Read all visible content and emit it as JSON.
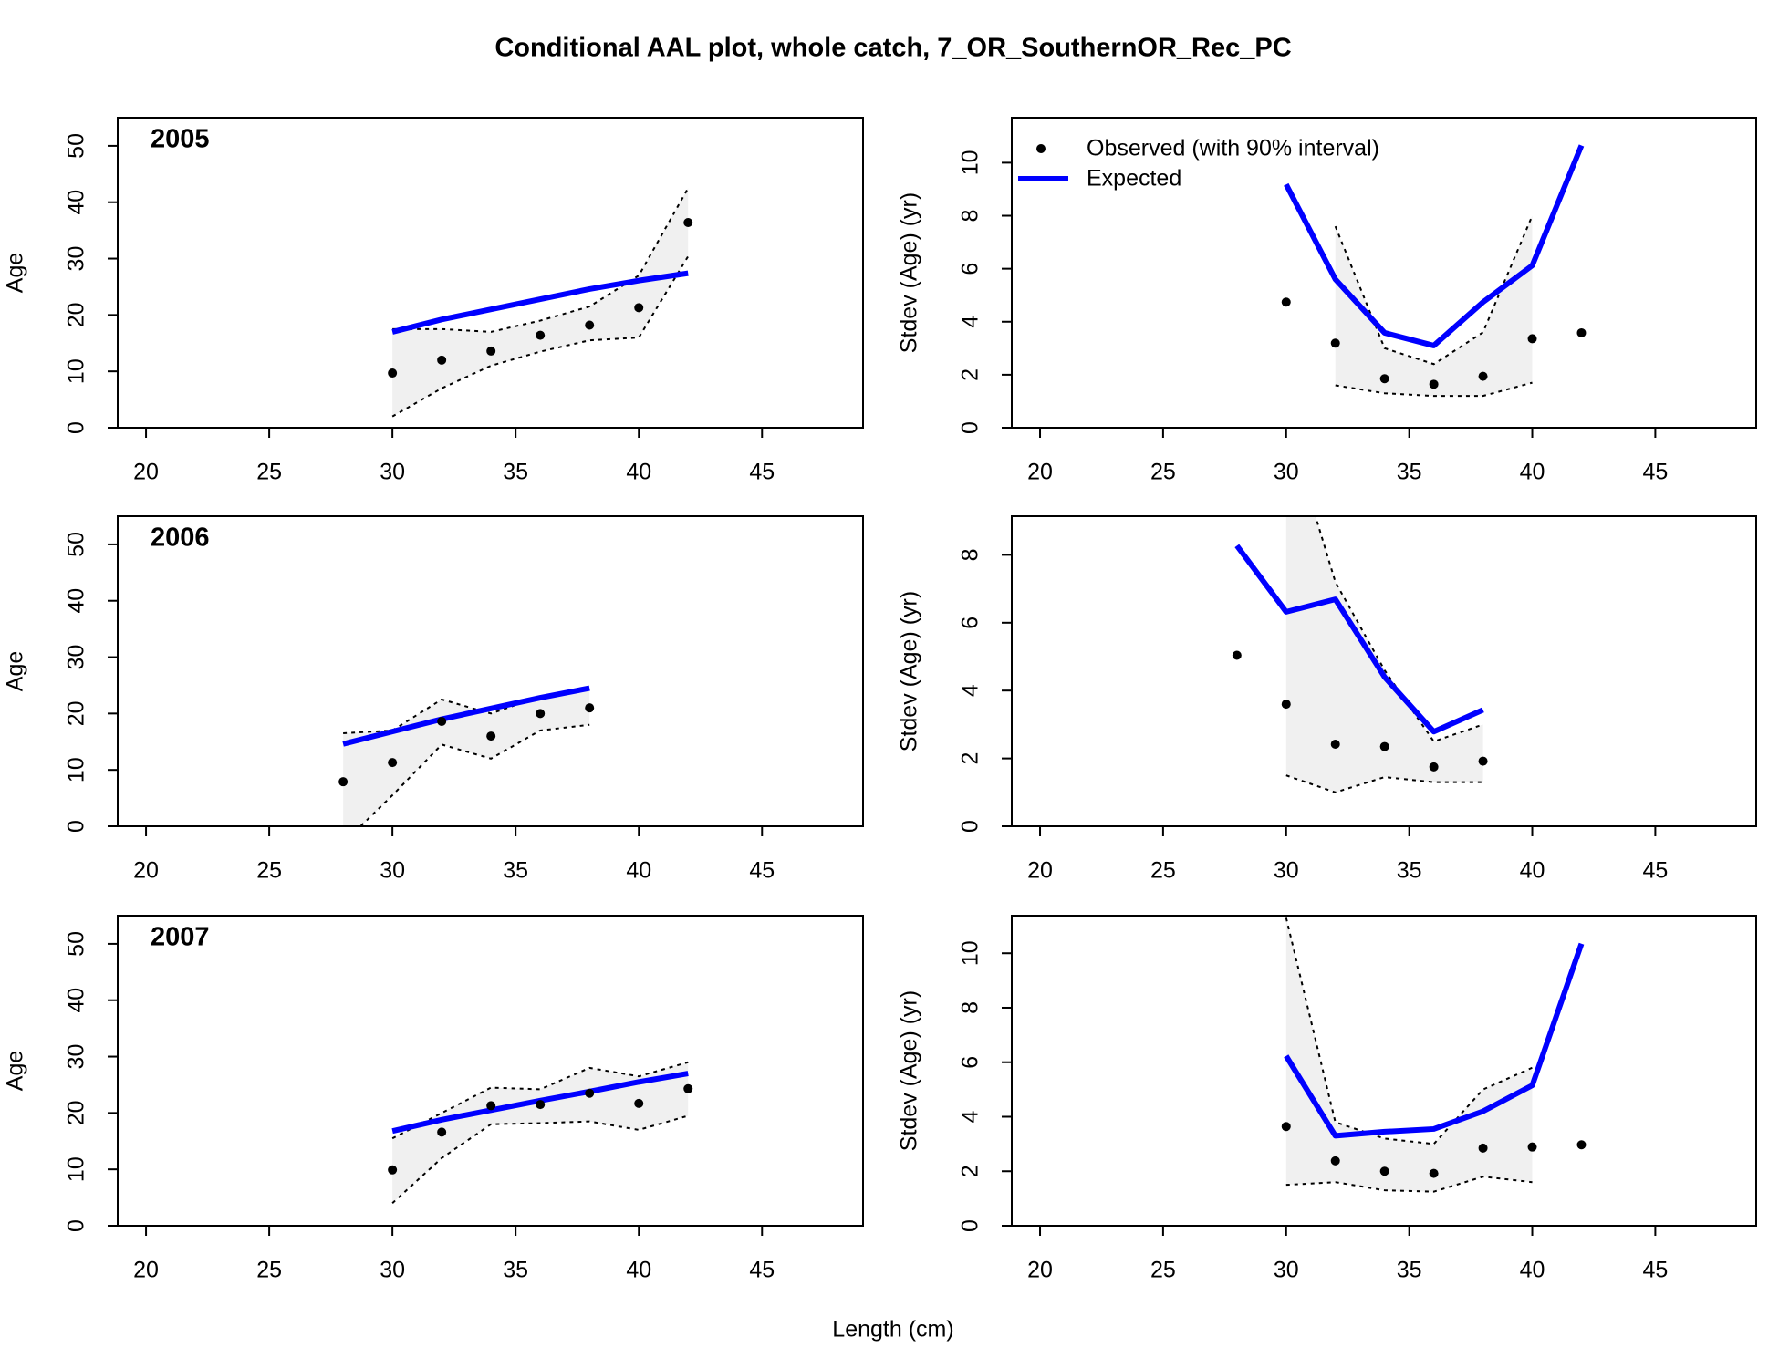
{
  "title": "Conditional AAL plot, whole catch, 7_OR_SouthernOR_Rec_PC",
  "xlabel": "Length (cm)",
  "chart_data": [
    {
      "type": "line",
      "title": "2005",
      "ylabel": "Age",
      "x": [
        30,
        32,
        34,
        36,
        38,
        40,
        42
      ],
      "observed": [
        9.7,
        12,
        13.6,
        16.4,
        18.2,
        21.3,
        36.4
      ],
      "upper": [
        17.5,
        17.5,
        17,
        19,
        21.5,
        27,
        42.5
      ],
      "lower": [
        2,
        7,
        11,
        13.5,
        15.5,
        16,
        30.4
      ],
      "expected": [
        17,
        19.2,
        21,
        22.8,
        24.6,
        26.1,
        27.4
      ],
      "xlim": [
        18.85,
        49.1
      ],
      "xticks": [
        20,
        25,
        30,
        35,
        40,
        45
      ],
      "ylim": [
        0,
        55
      ],
      "yticks": [
        0,
        10,
        20,
        30,
        40,
        50
      ],
      "colors": {
        "observed": "#000000",
        "expected": "#0000ff",
        "interval": "#f0f0f0"
      }
    },
    {
      "type": "line",
      "ylabel": "Stdev (Age) (yr)",
      "x": [
        30,
        32,
        34,
        36,
        38,
        40,
        42
      ],
      "observed": [
        4.74,
        3.19,
        1.85,
        1.64,
        1.94,
        3.36,
        3.58
      ],
      "upper": [
        null,
        7.6,
        3.0,
        2.4,
        3.6,
        8.0,
        null
      ],
      "lower": [
        null,
        1.6,
        1.3,
        1.2,
        1.2,
        1.7,
        null
      ],
      "expected": [
        9.18,
        5.6,
        3.58,
        3.1,
        4.74,
        6.12,
        10.65
      ],
      "xlim": [
        18.85,
        49.1
      ],
      "xticks": [
        20,
        25,
        30,
        35,
        40,
        45
      ],
      "ylim": [
        0,
        11.7
      ],
      "yticks": [
        0,
        2,
        4,
        6,
        8,
        10
      ],
      "colors": {
        "observed": "#000000",
        "expected": "#0000ff",
        "interval": "#f0f0f0"
      },
      "legend": {
        "position": "top-left",
        "observed": "Observed (with 90% interval)",
        "expected": "Expected"
      }
    },
    {
      "type": "line",
      "title": "2006",
      "ylabel": "Age",
      "x": [
        28,
        30,
        32,
        34,
        36,
        38
      ],
      "observed": [
        7.9,
        11.3,
        18.6,
        16,
        20,
        21
      ],
      "upper": [
        16.5,
        17,
        22.5,
        20,
        23,
        24.5
      ],
      "lower": [
        -3,
        5.5,
        14.5,
        12,
        17,
        18
      ],
      "expected": [
        14.6,
        16.8,
        19,
        20.9,
        22.8,
        24.5
      ],
      "xlim": [
        18.85,
        49.1
      ],
      "xticks": [
        20,
        25,
        30,
        35,
        40,
        45
      ],
      "ylim": [
        0,
        55
      ],
      "yticks": [
        0,
        10,
        20,
        30,
        40,
        50
      ],
      "colors": {
        "observed": "#000000",
        "expected": "#0000ff",
        "interval": "#f0f0f0"
      }
    },
    {
      "type": "line",
      "ylabel": "Stdev (Age) (yr)",
      "x": [
        28,
        30,
        32,
        34,
        36,
        38
      ],
      "observed": [
        5.04,
        3.6,
        2.42,
        2.35,
        1.75,
        1.92
      ],
      "upper": [
        null,
        12.0,
        7.2,
        4.6,
        2.5,
        3.0
      ],
      "lower": [
        null,
        1.5,
        1.0,
        1.45,
        1.3,
        1.3
      ],
      "expected": [
        8.27,
        6.32,
        6.69,
        4.4,
        2.79,
        3.43
      ],
      "xlim": [
        18.85,
        49.1
      ],
      "xticks": [
        20,
        25,
        30,
        35,
        40,
        45
      ],
      "ylim": [
        0,
        9.14
      ],
      "yticks": [
        0,
        2,
        4,
        6,
        8
      ],
      "colors": {
        "observed": "#000000",
        "expected": "#0000ff",
        "interval": "#f0f0f0"
      }
    },
    {
      "type": "line",
      "title": "2007",
      "ylabel": "Age",
      "x": [
        30,
        32,
        34,
        36,
        38,
        40,
        42
      ],
      "observed": [
        9.9,
        16.6,
        21.3,
        21.5,
        23.5,
        21.7,
        24.3
      ],
      "upper": [
        15.5,
        20,
        24.5,
        24.2,
        28,
        26.5,
        29
      ],
      "lower": [
        4,
        12,
        18,
        18.2,
        18.5,
        17,
        19.5
      ],
      "expected": [
        16.8,
        18.8,
        20.5,
        22.2,
        23.8,
        25.5,
        27
      ],
      "xlim": [
        18.85,
        49.1
      ],
      "xticks": [
        20,
        25,
        30,
        35,
        40,
        45
      ],
      "ylim": [
        0,
        55
      ],
      "yticks": [
        0,
        10,
        20,
        30,
        40,
        50
      ],
      "colors": {
        "observed": "#000000",
        "expected": "#0000ff",
        "interval": "#f0f0f0"
      }
    },
    {
      "type": "line",
      "ylabel": "Stdev (Age) (yr)",
      "x": [
        30,
        32,
        34,
        36,
        38,
        40,
        42
      ],
      "observed": [
        3.64,
        2.38,
        2.0,
        1.92,
        2.85,
        2.89,
        2.97
      ],
      "upper": [
        11.3,
        3.8,
        3.2,
        3.0,
        5.0,
        5.8,
        null
      ],
      "lower": [
        1.5,
        1.6,
        1.3,
        1.25,
        1.8,
        1.6,
        null
      ],
      "expected": [
        6.23,
        3.3,
        3.45,
        3.55,
        4.2,
        5.15,
        10.35
      ],
      "xlim": [
        18.85,
        49.1
      ],
      "xticks": [
        20,
        25,
        30,
        35,
        40,
        45
      ],
      "ylim": [
        0,
        11.38
      ],
      "yticks": [
        0,
        2,
        4,
        6,
        8,
        10
      ],
      "colors": {
        "observed": "#000000",
        "expected": "#0000ff",
        "interval": "#f0f0f0"
      }
    }
  ]
}
